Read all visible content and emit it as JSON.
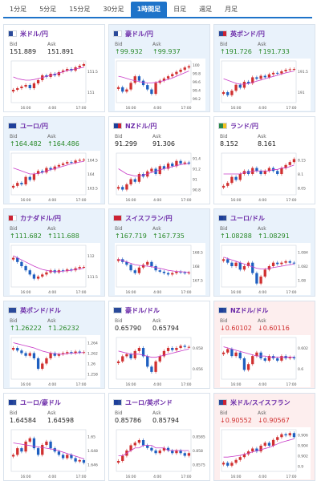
{
  "tabs": [
    {
      "label": "1分足",
      "active": false
    },
    {
      "label": "5分足",
      "active": false
    },
    {
      "label": "15分足",
      "active": false
    },
    {
      "label": "30分足",
      "active": false
    },
    {
      "label": "1時間足",
      "active": true
    },
    {
      "label": "日足",
      "active": false
    },
    {
      "label": "週足",
      "active": false
    },
    {
      "label": "月足",
      "active": false
    }
  ],
  "labels": {
    "bid": "Bid",
    "ask": "Ask"
  },
  "colors": {
    "up": "#2a8a2a",
    "down": "#d03030",
    "tab_active": "#1e73c9",
    "pair_label": "#6b2aa8",
    "candle_up": "#d03030",
    "candle_down": "#1e5fc0",
    "ma_line": "#c83cc8"
  },
  "cards": [
    {
      "name": "米ドル/円",
      "bid": "151.889",
      "ask": "151.891",
      "dir": "",
      "bg": "white",
      "flag": [
        "#2a4a9a",
        "#ffffff"
      ],
      "x_labels": [
        "16:00",
        "4:00",
        "17:00"
      ],
      "y_labels": [
        "151.5",
        "151"
      ],
      "yr": [
        150.7,
        152.0
      ],
      "price": [
        151.1,
        151.15,
        151.2,
        151.25,
        151.15,
        151.3,
        151.4,
        151.55,
        151.5,
        151.6,
        151.55,
        151.65,
        151.7,
        151.75,
        151.7,
        151.8,
        151.85,
        151.9
      ],
      "ma": [
        151.5,
        151.45,
        151.42,
        151.4,
        151.4,
        151.42,
        151.45,
        151.48,
        151.52,
        151.55,
        151.58,
        151.62,
        151.66,
        151.7,
        151.72,
        151.75,
        151.78,
        151.8
      ]
    },
    {
      "name": "豪ドル/円",
      "bid": "99.932",
      "ask": "99.937",
      "dir": "up",
      "bg": "blue",
      "flag": [
        "#2a4a9a",
        "#ffffff"
      ],
      "x_labels": [
        "16:00",
        "4:00",
        "17:00"
      ],
      "y_labels": [
        "100",
        "99.8",
        "99.6",
        "99.4",
        "99.2"
      ],
      "yr": [
        99.1,
        100.05
      ],
      "price": [
        99.45,
        99.35,
        99.4,
        99.55,
        99.7,
        99.6,
        99.5,
        99.4,
        99.3,
        99.55,
        99.6,
        99.65,
        99.7,
        99.75,
        99.8,
        99.85,
        99.9,
        99.93
      ],
      "ma": [
        99.7,
        99.68,
        99.65,
        99.62,
        99.6,
        99.58,
        99.56,
        99.55,
        99.55,
        99.56,
        99.58,
        99.6,
        99.63,
        99.66,
        99.7,
        99.74,
        99.78,
        99.82
      ]
    },
    {
      "name": "英ポンド/円",
      "bid": "191.726",
      "ask": "191.733",
      "dir": "up",
      "bg": "blue",
      "flag": [
        "#2a4a9a",
        "#cc2233"
      ],
      "x_labels": [
        "16:00",
        "4:00",
        "17:00"
      ],
      "y_labels": [
        "191.5",
        "191"
      ],
      "yr": [
        190.6,
        192.0
      ],
      "price": [
        190.95,
        190.85,
        191.0,
        191.2,
        191.1,
        191.3,
        191.25,
        191.45,
        191.4,
        191.5,
        191.45,
        191.55,
        191.6,
        191.58,
        191.65,
        191.7,
        191.72,
        191.73
      ],
      "ma": [
        191.4,
        191.35,
        191.3,
        191.25,
        191.22,
        191.22,
        191.24,
        191.28,
        191.32,
        191.36,
        191.4,
        191.44,
        191.48,
        191.52,
        191.56,
        191.6,
        191.63,
        191.66
      ]
    },
    {
      "name": "ユーロ/円",
      "bid": "164.482",
      "ask": "164.486",
      "dir": "up",
      "bg": "blue",
      "flag": [
        "#1e3f9a",
        "#1e3f9a"
      ],
      "x_labels": [
        "16:00",
        "4:00",
        "17:00"
      ],
      "y_labels": [
        "164.5",
        "164",
        "163.5"
      ],
      "yr": [
        163.3,
        164.7
      ],
      "price": [
        163.6,
        163.7,
        163.65,
        163.9,
        163.8,
        164.0,
        164.1,
        164.05,
        164.2,
        164.15,
        164.25,
        164.3,
        164.35,
        164.4,
        164.38,
        164.45,
        164.47,
        164.48
      ],
      "ma": [
        164.2,
        164.15,
        164.1,
        164.05,
        164.0,
        164.0,
        164.02,
        164.05,
        164.1,
        164.14,
        164.18,
        164.22,
        164.26,
        164.3,
        164.34,
        164.37,
        164.4,
        164.42
      ]
    },
    {
      "name": "NZドル/円",
      "bid": "91.299",
      "ask": "91.306",
      "dir": "",
      "bg": "white",
      "flag": [
        "#1e3f9a",
        "#cc2233"
      ],
      "x_labels": [
        "16:00",
        "4:00",
        "17:00"
      ],
      "y_labels": [
        "91.4",
        "91.2",
        "91",
        "90.8"
      ],
      "yr": [
        90.7,
        91.5
      ],
      "price": [
        90.85,
        90.8,
        90.9,
        91.0,
        90.95,
        91.1,
        91.05,
        91.15,
        91.2,
        91.1,
        91.25,
        91.2,
        91.3,
        91.25,
        91.35,
        91.3,
        91.32,
        91.3
      ],
      "ma": [
        91.2,
        91.15,
        91.1,
        91.08,
        91.06,
        91.06,
        91.08,
        91.1,
        91.13,
        91.15,
        91.18,
        91.2,
        91.22,
        91.24,
        91.26,
        91.28,
        91.29,
        91.3
      ]
    },
    {
      "name": "ランド/円",
      "bid": "8.152",
      "ask": "8.161",
      "dir": "",
      "bg": "white",
      "flag": [
        "#2a8a4a",
        "#f0c020"
      ],
      "x_labels": [
        "16:00",
        "4:00",
        "17:00"
      ],
      "y_labels": [
        "8.15",
        "8.1",
        "8.05"
      ],
      "yr": [
        8.03,
        8.17
      ],
      "price": [
        8.06,
        8.07,
        8.09,
        8.08,
        8.1,
        8.11,
        8.1,
        8.12,
        8.11,
        8.1,
        8.11,
        8.12,
        8.11,
        8.1,
        8.12,
        8.13,
        8.14,
        8.15
      ],
      "ma": [
        8.1,
        8.1,
        8.1,
        8.1,
        8.1,
        8.105,
        8.105,
        8.11,
        8.11,
        8.11,
        8.11,
        8.11,
        8.115,
        8.115,
        8.12,
        8.12,
        8.125,
        8.13
      ]
    },
    {
      "name": "カナダドル/円",
      "bid": "111.682",
      "ask": "111.688",
      "dir": "up",
      "bg": "blue",
      "flag": [
        "#cc2233",
        "#ffffff"
      ],
      "x_labels": [
        "16:00",
        "4:00",
        "17:00"
      ],
      "y_labels": [
        "112",
        "111.5"
      ],
      "yr": [
        111.2,
        112.2
      ],
      "price": [
        111.9,
        111.8,
        111.7,
        111.6,
        111.5,
        111.4,
        111.45,
        111.5,
        111.55,
        111.6,
        111.55,
        111.6,
        111.58,
        111.62,
        111.6,
        111.65,
        111.68,
        111.68
      ],
      "ma": [
        111.95,
        111.9,
        111.85,
        111.8,
        111.75,
        111.7,
        111.66,
        111.62,
        111.6,
        111.58,
        111.57,
        111.57,
        111.58,
        111.59,
        111.6,
        111.62,
        111.63,
        111.65
      ]
    },
    {
      "name": "スイスフラン/円",
      "bid": "167.719",
      "ask": "167.735",
      "dir": "up",
      "bg": "blue",
      "flag": [
        "#cc2233",
        "#cc2233"
      ],
      "x_labels": [
        "16:00",
        "4:00",
        "17:00"
      ],
      "y_labels": [
        "168.5",
        "168",
        "167.5"
      ],
      "yr": [
        167.2,
        168.7
      ],
      "price": [
        168.2,
        168.1,
        168.0,
        167.8,
        167.7,
        167.9,
        168.0,
        168.1,
        167.95,
        167.8,
        167.75,
        167.7,
        167.65,
        167.7,
        167.75,
        167.72,
        167.7,
        167.72
      ],
      "ma": [
        168.2,
        168.15,
        168.1,
        168.05,
        168.0,
        167.98,
        167.96,
        167.95,
        167.93,
        167.9,
        167.87,
        167.84,
        167.8,
        167.78,
        167.76,
        167.75,
        167.74,
        167.73
      ]
    },
    {
      "name": "ユーロ/ドル",
      "bid": "1.08288",
      "ask": "1.08291",
      "dir": "up",
      "bg": "blue",
      "flag": [
        "#1e3f9a",
        "#2a4a9a"
      ],
      "x_labels": [
        "16:00",
        "4:00",
        "17:00"
      ],
      "y_labels": [
        "1.084",
        "1.082",
        "1.08"
      ],
      "yr": [
        1.0795,
        1.0855
      ],
      "price": [
        1.0835,
        1.083,
        1.0825,
        1.083,
        1.082,
        1.0825,
        1.083,
        1.0815,
        1.08,
        1.081,
        1.082,
        1.0825,
        1.083,
        1.0828,
        1.083,
        1.0832,
        1.083,
        1.0829
      ],
      "ma": [
        1.0838,
        1.0836,
        1.0834,
        1.0832,
        1.083,
        1.0828,
        1.0826,
        1.0824,
        1.0822,
        1.0821,
        1.0821,
        1.0822,
        1.0823,
        1.0824,
        1.0825,
        1.0826,
        1.0827,
        1.0828
      ]
    },
    {
      "name": "英ポンド/ドル",
      "bid": "1.26222",
      "ask": "1.26232",
      "dir": "up",
      "bg": "blue",
      "flag": [
        "#2a4a9a",
        "#2a4a9a"
      ],
      "x_labels": [
        "16:00",
        "4:00",
        "17:00"
      ],
      "y_labels": [
        "1.264",
        "1.262",
        "1.26",
        "1.258"
      ],
      "yr": [
        1.257,
        1.265
      ],
      "price": [
        1.263,
        1.2625,
        1.262,
        1.2615,
        1.262,
        1.261,
        1.259,
        1.26,
        1.261,
        1.262,
        1.2615,
        1.2618,
        1.262,
        1.2622,
        1.262,
        1.2623,
        1.2621,
        1.2622
      ],
      "ma": [
        1.264,
        1.2638,
        1.2636,
        1.2634,
        1.2632,
        1.263,
        1.2627,
        1.2624,
        1.2622,
        1.262,
        1.2619,
        1.2618,
        1.2618,
        1.2619,
        1.262,
        1.262,
        1.2621,
        1.2621
      ]
    },
    {
      "name": "豪ドル/ドル",
      "bid": "0.65790",
      "ask": "0.65794",
      "dir": "",
      "bg": "white",
      "flag": [
        "#2a4a9a",
        "#2a4a9a"
      ],
      "x_labels": [
        "16:00",
        "4:00",
        "17:00"
      ],
      "y_labels": [
        "0.658",
        "0.656"
      ],
      "yr": [
        0.6548,
        0.6588
      ],
      "price": [
        0.6565,
        0.657,
        0.6572,
        0.6568,
        0.6575,
        0.6578,
        0.657,
        0.656,
        0.6555,
        0.6565,
        0.657,
        0.6575,
        0.6578,
        0.6576,
        0.6578,
        0.658,
        0.6579,
        0.6579
      ],
      "ma": [
        0.6575,
        0.6574,
        0.6573,
        0.6572,
        0.6572,
        0.6572,
        0.6571,
        0.657,
        0.6569,
        0.6569,
        0.657,
        0.6571,
        0.6572,
        0.6573,
        0.6574,
        0.6575,
        0.6576,
        0.6577
      ]
    },
    {
      "name": "NZドル/ドル",
      "bid": "0.60102",
      "ask": "0.60116",
      "dir": "down",
      "bg": "pink",
      "flag": [
        "#1e3f9a",
        "#2a4a9a"
      ],
      "x_labels": [
        "16:00",
        "4:00",
        "17:00"
      ],
      "y_labels": [
        "0.602",
        "0.6"
      ],
      "yr": [
        0.5992,
        0.6028
      ],
      "price": [
        0.6015,
        0.6018,
        0.6012,
        0.6015,
        0.601,
        0.6,
        0.6005,
        0.6012,
        0.6015,
        0.601,
        0.6008,
        0.6012,
        0.601,
        0.6008,
        0.6012,
        0.601,
        0.6011,
        0.601
      ],
      "ma": [
        0.602,
        0.6019,
        0.6018,
        0.6017,
        0.6016,
        0.6015,
        0.6014,
        0.6013,
        0.6012,
        0.6012,
        0.6012,
        0.6011,
        0.6011,
        0.6011,
        0.6011,
        0.6011,
        0.6011,
        0.6011
      ]
    },
    {
      "name": "ユーロ/豪ドル",
      "bid": "1.64584",
      "ask": "1.64598",
      "dir": "",
      "bg": "white",
      "flag": [
        "#1e3f9a",
        "#2a4a9a"
      ],
      "x_labels": [
        "16:00",
        "4:00",
        "17:00"
      ],
      "y_labels": [
        "1.65",
        "1.648",
        "1.646"
      ],
      "yr": [
        1.6445,
        1.6508
      ],
      "price": [
        1.647,
        1.648,
        1.6475,
        1.649,
        1.6495,
        1.648,
        1.647,
        1.6485,
        1.649,
        1.648,
        1.6475,
        1.647,
        1.6465,
        1.647,
        1.6465,
        1.646,
        1.6462,
        1.6458
      ],
      "ma": [
        1.6488,
        1.6487,
        1.6486,
        1.6485,
        1.6484,
        1.6483,
        1.6482,
        1.6481,
        1.648,
        1.6479,
        1.6478,
        1.6476,
        1.6474,
        1.6472,
        1.647,
        1.6468,
        1.6466,
        1.6464
      ]
    },
    {
      "name": "ユーロ/英ポンド",
      "bid": "0.85786",
      "ask": "0.85794",
      "dir": "",
      "bg": "white",
      "flag": [
        "#1e3f9a",
        "#2a4a9a"
      ],
      "x_labels": [
        "16:00",
        "4:00",
        "17:00"
      ],
      "y_labels": [
        "0.8585",
        "0.858",
        "0.8575"
      ],
      "yr": [
        0.8572,
        0.8588
      ],
      "price": [
        0.8576,
        0.8578,
        0.858,
        0.8582,
        0.8583,
        0.8584,
        0.8582,
        0.8581,
        0.858,
        0.8579,
        0.858,
        0.8581,
        0.858,
        0.8579,
        0.858,
        0.8579,
        0.8578,
        0.8579
      ],
      "ma": [
        0.8578,
        0.8578,
        0.8579,
        0.858,
        0.8581,
        0.8581,
        0.8582,
        0.8582,
        0.8582,
        0.8581,
        0.8581,
        0.8581,
        0.858,
        0.858,
        0.858,
        0.858,
        0.858,
        0.858
      ]
    },
    {
      "name": "米ドル/スイスフラン",
      "bid": "0.90552",
      "ask": "0.90567",
      "dir": "down",
      "bg": "pink",
      "flag": [
        "#2a4a9a",
        "#cc2233"
      ],
      "x_labels": [
        "16:00",
        "4:00",
        "17:00"
      ],
      "y_labels": [
        "0.906",
        "0.904",
        "0.902",
        "0.9"
      ],
      "yr": [
        0.8995,
        0.9068
      ],
      "price": [
        0.901,
        0.9005,
        0.901,
        0.9015,
        0.902,
        0.9025,
        0.903,
        0.9035,
        0.903,
        0.904,
        0.9045,
        0.904,
        0.905,
        0.9055,
        0.906,
        0.9058,
        0.9062,
        0.9055
      ],
      "ma": [
        0.902,
        0.902,
        0.9021,
        0.9022,
        0.9023,
        0.9025,
        0.9027,
        0.9029,
        0.9031,
        0.9033,
        0.9035,
        0.9037,
        0.904,
        0.9043,
        0.9046,
        0.9048,
        0.905,
        0.9052
      ]
    }
  ]
}
